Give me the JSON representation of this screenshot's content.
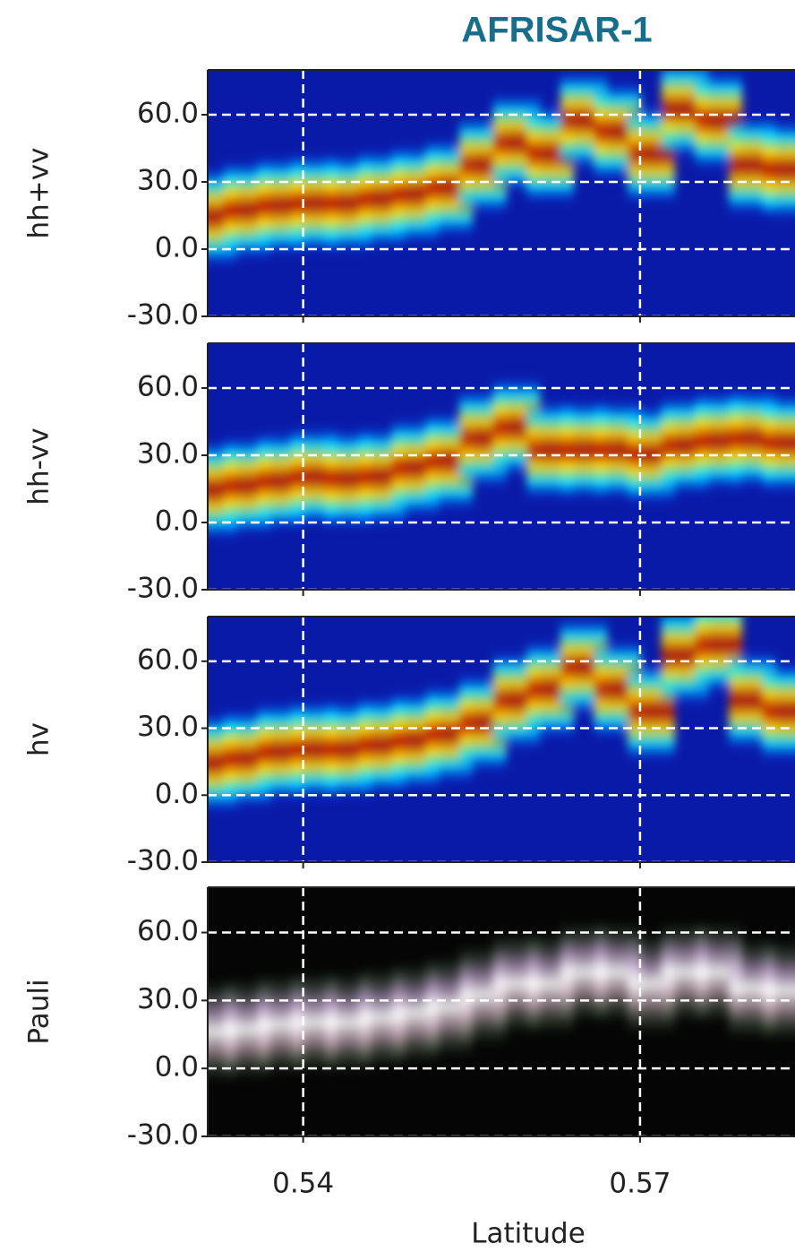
{
  "chart_data": [
    {
      "type": "heatmap",
      "title": "AFRISAR-1",
      "ylabel": "hh+vv",
      "colormap": "jet",
      "grid": true,
      "x": [
        0.532,
        0.535,
        0.538,
        0.541,
        0.544,
        0.547,
        0.55,
        0.553,
        0.556,
        0.559,
        0.562,
        0.565,
        0.568,
        0.571,
        0.574,
        0.577,
        0.58,
        0.583
      ],
      "values": [
        12,
        15,
        17,
        18,
        18,
        20,
        22,
        25,
        35,
        45,
        40,
        55,
        50,
        40,
        60,
        55,
        35,
        33
      ],
      "xlim": [
        0.5315,
        0.5838
      ],
      "ylim": [
        -30,
        80
      ],
      "yticks": [
        {
          "value": -30,
          "label": "-30.0"
        },
        {
          "value": 0,
          "label": "0.0"
        },
        {
          "value": 30,
          "label": "30.0"
        },
        {
          "value": 60,
          "label": "60.0"
        }
      ]
    },
    {
      "type": "heatmap",
      "ylabel": "hh-vv",
      "colormap": "jet",
      "grid": true,
      "x": [
        0.532,
        0.535,
        0.538,
        0.541,
        0.544,
        0.547,
        0.55,
        0.553,
        0.556,
        0.559,
        0.562,
        0.565,
        0.568,
        0.571,
        0.574,
        0.577,
        0.58,
        0.583
      ],
      "values": [
        12,
        14,
        16,
        18,
        17,
        18,
        22,
        25,
        35,
        40,
        30,
        30,
        30,
        28,
        32,
        34,
        35,
        33
      ],
      "xlim": [
        0.5315,
        0.5838
      ],
      "ylim": [
        -30,
        80
      ],
      "yticks": [
        {
          "value": -30,
          "label": "-30.0"
        },
        {
          "value": 0,
          "label": "0.0"
        },
        {
          "value": 30,
          "label": "30.0"
        },
        {
          "value": 60,
          "label": "60.0"
        }
      ]
    },
    {
      "type": "heatmap",
      "ylabel": "hv",
      "colormap": "jet",
      "grid": true,
      "x": [
        0.532,
        0.535,
        0.538,
        0.541,
        0.544,
        0.547,
        0.55,
        0.553,
        0.556,
        0.559,
        0.562,
        0.565,
        0.568,
        0.571,
        0.574,
        0.577,
        0.58,
        0.583
      ],
      "values": [
        12,
        14,
        17,
        18,
        18,
        20,
        22,
        25,
        30,
        40,
        45,
        55,
        45,
        35,
        60,
        65,
        40,
        35
      ],
      "xlim": [
        0.5315,
        0.5838
      ],
      "ylim": [
        -30,
        80
      ],
      "yticks": [
        {
          "value": -30,
          "label": "-30.0"
        },
        {
          "value": 0,
          "label": "0.0"
        },
        {
          "value": 30,
          "label": "30.0"
        },
        {
          "value": 60,
          "label": "60.0"
        }
      ]
    },
    {
      "type": "heatmap",
      "ylabel": "Pauli",
      "xlabel": "Latitude",
      "colormap": "pauli",
      "grid": true,
      "x": [
        0.532,
        0.535,
        0.538,
        0.541,
        0.544,
        0.547,
        0.55,
        0.553,
        0.556,
        0.559,
        0.562,
        0.565,
        0.568,
        0.571,
        0.574,
        0.577,
        0.58,
        0.583
      ],
      "values": [
        14,
        15,
        17,
        18,
        18,
        20,
        22,
        25,
        30,
        35,
        35,
        40,
        40,
        35,
        40,
        40,
        33,
        32
      ],
      "xlim": [
        0.5315,
        0.5838
      ],
      "ylim": [
        -30,
        80
      ],
      "yticks": [
        {
          "value": -30,
          "label": "-30.0"
        },
        {
          "value": 0,
          "label": "0.0"
        },
        {
          "value": 30,
          "label": "30.0"
        },
        {
          "value": 60,
          "label": "60.0"
        }
      ],
      "xticks": [
        0.54,
        0.57
      ]
    }
  ]
}
